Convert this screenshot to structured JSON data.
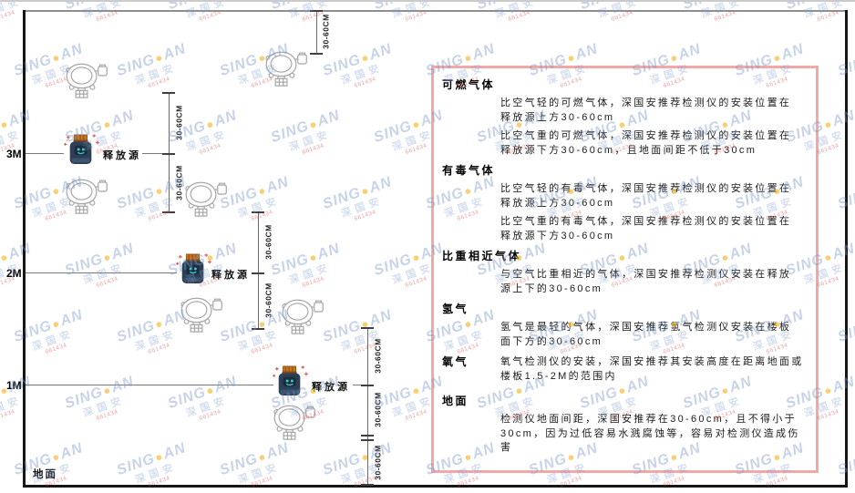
{
  "watermark": {
    "brand_prefix": "SING",
    "brand_suffix": "AN",
    "brand_dot": "●",
    "company_cjk": "深国安",
    "red_note": "661434"
  },
  "diagram": {
    "height_labels": [
      "3M",
      "2M",
      "1M"
    ],
    "ground_label": "地面",
    "source_label": "释放源",
    "dim_label": "30-60CM"
  },
  "panel": {
    "sections": [
      {
        "heading": "可燃气体",
        "paragraphs": [
          "比空气轻的可燃气体，深国安推荐检测仪的安装位置在释放源上方30-60cm",
          "比空气重的可燃气体，深国安推荐检测仪的安装位置在释放源下方30-60cm，且地面间距不低于30cm"
        ]
      },
      {
        "heading": "有毒气体",
        "paragraphs": [
          "比空气轻的有毒气体，深国安推荐检测仪的安装位置在释放源上方30-60cm",
          "比空气重的有毒气体，深国安推荐检测仪的安装位置在释放源下方30-60cm"
        ]
      },
      {
        "heading": "比重相近气体",
        "paragraphs": [
          "与空气比重相近的气体，深国安推荐检测仪安装在释放源上下的30-60cm"
        ]
      },
      {
        "heading": "氢气",
        "paragraphs": [
          "氢气是最轻的气体，深国安推荐氢气检测仪安装在楼板面下方的30-60cm"
        ]
      },
      {
        "heading": "氧气",
        "paragraphs": [
          "氧气检测仪的安装，深国安推荐其安装高度在距离地面或楼板1.5-2M的范围内"
        ]
      },
      {
        "heading": "地面",
        "paragraphs": [
          "检测仪地面间距，深国安推荐在30-60cm，且不得小于30cm，因为过低容易水溅腐蚀等，容易对检测仪造成伤害"
        ]
      }
    ]
  },
  "colors": {
    "panel_border": "#f4a7a7",
    "frame_black": "#161616",
    "line_gray": "#787878",
    "watermark_blue": "#7a96c8",
    "watermark_dot": "#f3b220",
    "source_cap": "#c8731e",
    "source_body": "#2d3f55",
    "source_face": "#38c8c8"
  }
}
